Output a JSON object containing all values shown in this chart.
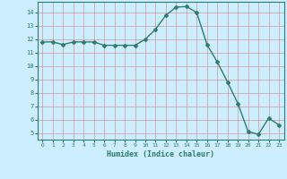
{
  "x": [
    0,
    1,
    2,
    3,
    4,
    5,
    6,
    7,
    8,
    9,
    10,
    11,
    12,
    13,
    14,
    15,
    16,
    17,
    18,
    19,
    20,
    21,
    22,
    23
  ],
  "y": [
    11.8,
    11.8,
    11.6,
    11.8,
    11.8,
    11.8,
    11.55,
    11.55,
    11.55,
    11.55,
    12.0,
    12.75,
    13.8,
    14.4,
    14.45,
    14.0,
    11.6,
    10.3,
    8.8,
    7.2,
    5.1,
    4.9,
    6.1,
    5.6
  ],
  "line_color": "#2e7d6e",
  "marker": "D",
  "markersize": 2.0,
  "bg_color": "#cceeff",
  "grid_color": "#b0b0b0",
  "axis_label_color": "#2e7d6e",
  "tick_color": "#2e7d6e",
  "xlabel": "Humidex (Indice chaleur)",
  "ylim": [
    4.5,
    14.8
  ],
  "xlim": [
    -0.5,
    23.5
  ],
  "yticks": [
    5,
    6,
    7,
    8,
    9,
    10,
    11,
    12,
    13,
    14
  ],
  "xticks": [
    0,
    1,
    2,
    3,
    4,
    5,
    6,
    7,
    8,
    9,
    10,
    11,
    12,
    13,
    14,
    15,
    16,
    17,
    18,
    19,
    20,
    21,
    22,
    23
  ]
}
